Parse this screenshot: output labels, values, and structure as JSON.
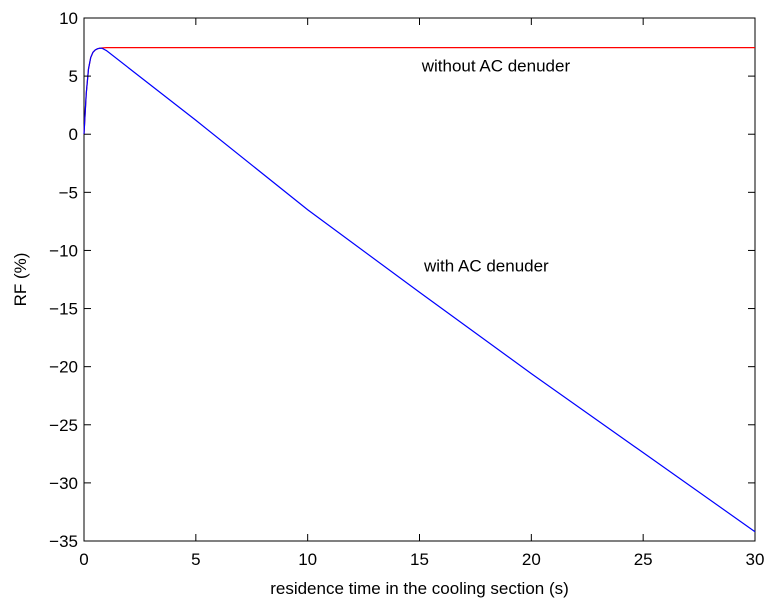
{
  "chart_data": {
    "type": "line",
    "title": "",
    "xlabel": "residence time in the cooling section (s)",
    "ylabel": "RF (%)",
    "xlim": [
      0,
      30
    ],
    "ylim": [
      -35,
      10
    ],
    "xticks": [
      0,
      5,
      10,
      15,
      20,
      25,
      30
    ],
    "yticks": [
      10,
      5,
      0,
      -5,
      -10,
      -15,
      -20,
      -25,
      -30,
      -35
    ],
    "grid": false,
    "legend": "none",
    "series": [
      {
        "color": "#ff0000",
        "x": [
          0,
          0.1,
          0.2,
          0.3,
          0.4,
          0.5,
          0.6,
          0.7,
          0.8,
          1,
          2,
          5,
          10,
          15,
          20,
          25,
          30
        ],
        "y": [
          0,
          3.5,
          5.6,
          6.6,
          7.05,
          7.25,
          7.35,
          7.4,
          7.42,
          7.45,
          7.45,
          7.45,
          7.45,
          7.45,
          7.45,
          7.45,
          7.45
        ]
      },
      {
        "color": "#0000ff",
        "x": [
          0,
          0.1,
          0.2,
          0.3,
          0.4,
          0.5,
          0.6,
          0.7,
          0.8,
          0.9,
          1,
          2,
          5,
          10,
          15,
          20,
          25,
          30
        ],
        "y": [
          0,
          3.5,
          5.6,
          6.6,
          7.05,
          7.25,
          7.35,
          7.4,
          7.4,
          7.3,
          7.2,
          5.7,
          1.2,
          -6.5,
          -13.6,
          -20.6,
          -27.4,
          -34.2
        ]
      }
    ],
    "annotations": [
      {
        "text": "without AC denuder",
        "x": 15.1,
        "y": 5.4
      },
      {
        "text": "with AC denuder",
        "x": 15.2,
        "y": -11.8
      }
    ]
  }
}
